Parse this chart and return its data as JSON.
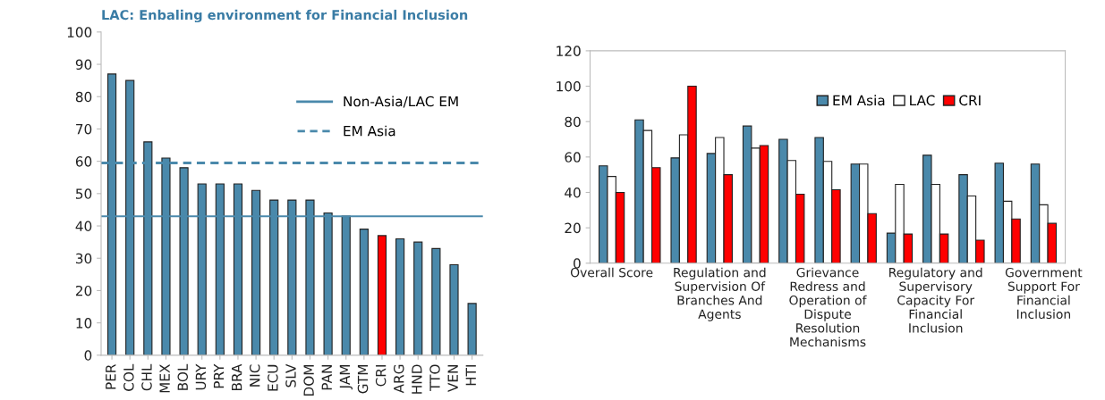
{
  "chart_data": [
    {
      "type": "bar",
      "title": "LAC: Enbaling environment for Financial Inclusion",
      "categories": [
        "PER",
        "COL",
        "CHL",
        "MEX",
        "BOL",
        "URY",
        "PRY",
        "BRA",
        "NIC",
        "ECU",
        "SLV",
        "DOM",
        "PAN",
        "JAM",
        "GTM",
        "CRI",
        "ARG",
        "HND",
        "TTO",
        "VEN",
        "HTI"
      ],
      "values": [
        87,
        85,
        66,
        61,
        58,
        53,
        53,
        53,
        51,
        48,
        48,
        48,
        44,
        43,
        39,
        37,
        36,
        35,
        33,
        28,
        16
      ],
      "colors": [
        "#4a89ab",
        "#4a89ab",
        "#4a89ab",
        "#4a89ab",
        "#4a89ab",
        "#4a89ab",
        "#4a89ab",
        "#4a89ab",
        "#4a89ab",
        "#4a89ab",
        "#4a89ab",
        "#4a89ab",
        "#4a89ab",
        "#4a89ab",
        "#4a89ab",
        "#ff0000",
        "#4a89ab",
        "#4a89ab",
        "#4a89ab",
        "#4a89ab",
        "#4a89ab"
      ],
      "ylim": [
        0,
        100
      ],
      "yticks": [
        0,
        10,
        20,
        30,
        40,
        50,
        60,
        70,
        80,
        90,
        100
      ],
      "ref_lines": [
        {
          "axis": "y",
          "value": 43,
          "label": "Non-Asia/LAC EM",
          "color": "#4a89ab",
          "line_style": "solid"
        },
        {
          "axis": "y",
          "value": 59.5,
          "label": "EM Asia",
          "color": "#4a89ab",
          "line_style": "dashed"
        }
      ],
      "legend": "top right",
      "grid": false
    },
    {
      "type": "bar",
      "categories": [
        "Overall Score",
        null,
        null,
        "Regulation and\nSupervision Of\nBranches And\nAgents",
        null,
        null,
        "Grievance\nRedress and\nOperation of\nDispute\nResolution\nMechanisms",
        null,
        null,
        "Regulatory and\nSupervisory\nCapacity For\nFinancial\nInclusion",
        null,
        null,
        "Government\nSupport For\nFinancial\nInclusion"
      ],
      "series": [
        {
          "name": "EM Asia",
          "color": "#4a89ab",
          "values": [
            55,
            81,
            59.5,
            62,
            77.5,
            70,
            71,
            56,
            17,
            61,
            50,
            56.5,
            56
          ]
        },
        {
          "name": "LAC",
          "color": "#ffffff",
          "values": [
            49,
            75,
            72.5,
            71,
            65,
            58,
            57.5,
            56,
            44.5,
            44.5,
            38,
            35,
            33
          ]
        },
        {
          "name": "CRI",
          "color": "#ff0000",
          "values": [
            40,
            54,
            100,
            50,
            66.5,
            39,
            41.5,
            28,
            16.5,
            16.5,
            13,
            25,
            22.5
          ]
        }
      ],
      "ylim": [
        0,
        120
      ],
      "yticks": [
        0,
        20,
        40,
        60,
        80,
        100,
        120
      ],
      "legend": "top right",
      "grid": false
    }
  ]
}
